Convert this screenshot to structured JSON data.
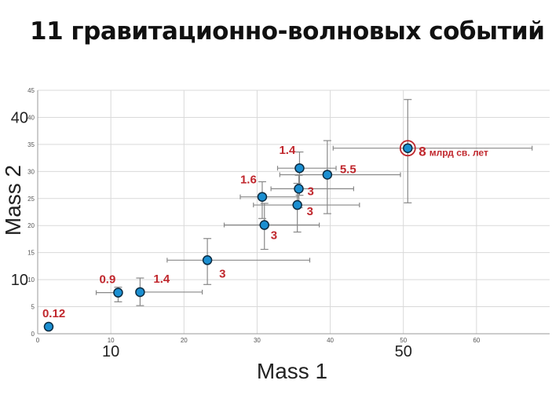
{
  "title": "11 гравитационно-волновых событий",
  "chart_data": {
    "type": "scatter",
    "title": "11 гравитационно-волновых событий",
    "xlabel": "Mass 1",
    "ylabel": "Mass 2",
    "xlim": [
      0,
      70
    ],
    "ylim": [
      0,
      45
    ],
    "grid": true,
    "x_ticks": [
      0,
      10,
      20,
      30,
      40,
      50,
      60
    ],
    "y_ticks": [
      0,
      5,
      10,
      15,
      20,
      25,
      30,
      35,
      40,
      45
    ],
    "x_tick_labels_overlay": [
      "10",
      "50"
    ],
    "y_tick_labels_overlay": [
      "10",
      "40"
    ],
    "point_color": "#1b8fd1",
    "label_color": "#c0272d",
    "points": [
      {
        "x": 1.5,
        "y": 1.3,
        "xerr": [
          0,
          0
        ],
        "yerr": [
          0,
          0
        ],
        "label": "0.12"
      },
      {
        "x": 11.0,
        "y": 7.6,
        "xerr": [
          3.0,
          0.0
        ],
        "yerr": [
          1.7,
          1.0
        ],
        "label": "0.9"
      },
      {
        "x": 14.0,
        "y": 7.7,
        "xerr": [
          0,
          8.5
        ],
        "yerr": [
          2.5,
          2.6
        ],
        "label": "1.4"
      },
      {
        "x": 23.2,
        "y": 13.6,
        "xerr": [
          5.5,
          14.0
        ],
        "yerr": [
          4.5,
          4.0
        ],
        "label": "3"
      },
      {
        "x": 31.0,
        "y": 20.1,
        "xerr": [
          5.5,
          7.5
        ],
        "yerr": [
          4.5,
          4.0
        ],
        "label": "3"
      },
      {
        "x": 35.5,
        "y": 23.8,
        "xerr": [
          6.0,
          8.5
        ],
        "yerr": [
          5.0,
          4.0
        ],
        "label": "3"
      },
      {
        "x": 30.7,
        "y": 25.3,
        "xerr": [
          3.0,
          5.0
        ],
        "yerr": [
          4.0,
          2.8
        ],
        "label": "1.6"
      },
      {
        "x": 35.7,
        "y": 26.8,
        "xerr": [
          3.8,
          7.5
        ],
        "yerr": [
          3.5,
          2.5
        ],
        "label": "3"
      },
      {
        "x": 35.8,
        "y": 30.6,
        "xerr": [
          3.0,
          5.0
        ],
        "yerr": [
          5.0,
          3.0
        ],
        "label": "1.4"
      },
      {
        "x": 39.6,
        "y": 29.4,
        "xerr": [
          6.5,
          10.0
        ],
        "yerr": [
          7.2,
          6.3
        ],
        "label": "5.5"
      },
      {
        "x": 50.6,
        "y": 34.3,
        "xerr": [
          10.2,
          17.0
        ],
        "yerr": [
          10.1,
          9.0
        ],
        "label": "8",
        "label_suffix": "млрд св. лет",
        "highlight": true
      }
    ]
  }
}
